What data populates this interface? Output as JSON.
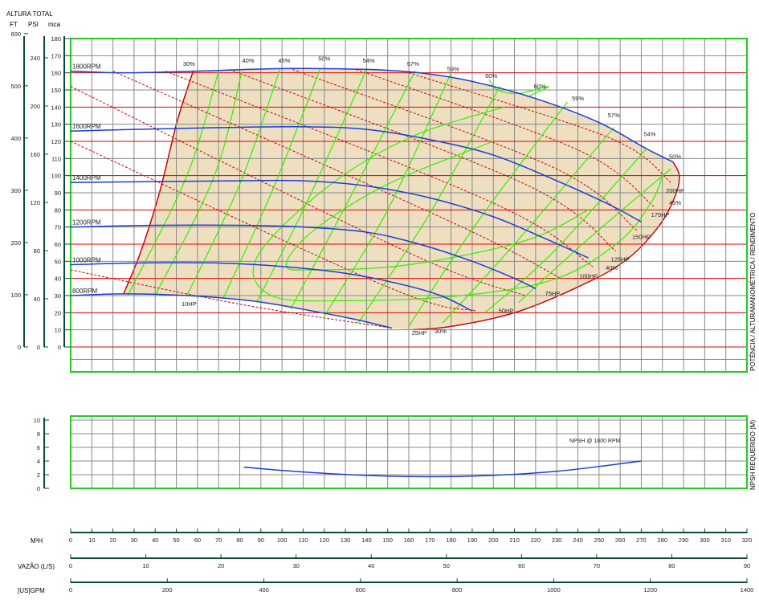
{
  "axis_titles": {
    "altura_total": "ALTURA TOTAL",
    "ft": "FT",
    "psi": "PSI",
    "mca": "mca",
    "right_main": "POTÊNCIA / ALTURAMANOMÉTRICA / RENDIMENTO",
    "right_npsh": "NPSH REQUERIDO (M)",
    "m3h": "M³H",
    "vazao": "VAZÃO (L/S)",
    "gpm": "[US]GPM"
  },
  "colors": {
    "grid_major_h": "#e00000",
    "grid_frame": "#22cc22",
    "grid_minor": "#888888",
    "rpm_curve": "#1a3fd6",
    "eff_line": "#33ee00",
    "hp_line": "#cc0000",
    "region_fill": "#eedfc0",
    "axis": "#0a4a3a"
  },
  "chart_data": [
    {
      "type": "line",
      "title": "",
      "xlabel": "M³H",
      "ylabel": "ALTURA TOTAL",
      "xlim": [
        0,
        320
      ],
      "ylim": [
        0,
        180
      ],
      "grid": true,
      "y_ticks_mca": [
        0,
        10,
        20,
        30,
        40,
        50,
        60,
        70,
        80,
        90,
        100,
        110,
        120,
        130,
        140,
        150,
        160,
        170,
        180
      ],
      "y_ticks_psi": [
        "0",
        "40",
        "80",
        "120",
        "160",
        "200",
        "240"
      ],
      "y_ticks_ft": [
        "0",
        "100",
        "200",
        "300",
        "400",
        "500",
        "600"
      ],
      "rpm_series": [
        {
          "name": "1800RPM",
          "points": [
            [
              0,
              161
            ],
            [
              25,
              160
            ],
            [
              60,
              161
            ],
            [
              100,
              162.5
            ],
            [
              140,
              162
            ],
            [
              165,
              160
            ],
            [
              190,
              155
            ],
            [
              220,
              145
            ],
            [
              250,
              131
            ],
            [
              272,
              116
            ],
            [
              285,
              108
            ]
          ]
        },
        {
          "name": "1600RPM",
          "points": [
            [
              0,
              126
            ],
            [
              30,
              127
            ],
            [
              70,
              128
            ],
            [
              110,
              128.5
            ],
            [
              140,
              127
            ],
            [
              170,
              121
            ],
            [
              200,
              112
            ],
            [
              230,
              97
            ],
            [
              255,
              83
            ],
            [
              270,
              73
            ]
          ]
        },
        {
          "name": "1400RPM",
          "points": [
            [
              0,
              96
            ],
            [
              40,
              96.5
            ],
            [
              80,
              97
            ],
            [
              110,
              97
            ],
            [
              140,
              94
            ],
            [
              170,
              87
            ],
            [
              200,
              76
            ],
            [
              225,
              63
            ],
            [
              245,
              52
            ]
          ]
        },
        {
          "name": "1200RPM",
          "points": [
            [
              0,
              70
            ],
            [
              40,
              71
            ],
            [
              80,
              71
            ],
            [
              110,
              70
            ],
            [
              140,
              67
            ],
            [
              165,
              60
            ],
            [
              190,
              50
            ],
            [
              210,
              40
            ],
            [
              220,
              34
            ]
          ]
        },
        {
          "name": "1000RPM",
          "points": [
            [
              0,
              48
            ],
            [
              30,
              49
            ],
            [
              70,
              49
            ],
            [
              100,
              47
            ],
            [
              130,
              43
            ],
            [
              155,
              37
            ],
            [
              175,
              30
            ],
            [
              190,
              21
            ]
          ]
        },
        {
          "name": "800RPM",
          "points": [
            [
              0,
              30
            ],
            [
              25,
              31
            ],
            [
              55,
              30
            ],
            [
              85,
              27
            ],
            [
              110,
              22
            ],
            [
              135,
              16
            ],
            [
              152,
              11
            ]
          ]
        }
      ],
      "efficiency_labels": [
        {
          "label": "30%",
          "x": 56,
          "y": 164
        },
        {
          "label": "40%",
          "x": 84,
          "y": 166
        },
        {
          "label": "45%",
          "x": 101,
          "y": 166
        },
        {
          "label": "50%",
          "x": 120,
          "y": 167
        },
        {
          "label": "54%",
          "x": 141,
          "y": 166
        },
        {
          "label": "57%",
          "x": 162,
          "y": 164
        },
        {
          "label": "59%",
          "x": 181,
          "y": 161
        },
        {
          "label": "60%",
          "x": 199,
          "y": 157
        },
        {
          "label": "60%",
          "x": 222,
          "y": 151
        },
        {
          "label": "59%",
          "x": 240,
          "y": 144
        },
        {
          "label": "57%",
          "x": 257,
          "y": 134
        },
        {
          "label": "54%",
          "x": 274,
          "y": 123
        },
        {
          "label": "50%",
          "x": 286,
          "y": 110
        },
        {
          "label": "45%",
          "x": 286,
          "y": 83
        },
        {
          "label": "40%",
          "x": 256,
          "y": 45
        },
        {
          "label": "30%",
          "x": 175,
          "y": 8
        }
      ],
      "hp_labels": [
        {
          "label": "10HP",
          "x": 56,
          "y": 24
        },
        {
          "label": "25HP",
          "x": 165,
          "y": 7
        },
        {
          "label": "50HP",
          "x": 206,
          "y": 20
        },
        {
          "label": "75HP",
          "x": 228,
          "y": 30
        },
        {
          "label": "100HP",
          "x": 245,
          "y": 40
        },
        {
          "label": "125HP",
          "x": 260,
          "y": 50
        },
        {
          "label": "150HP",
          "x": 270,
          "y": 63
        },
        {
          "label": "175HP",
          "x": 279,
          "y": 76
        },
        {
          "label": "200HP",
          "x": 286,
          "y": 90
        }
      ]
    },
    {
      "type": "line",
      "title": "",
      "xlabel": "M³H",
      "ylabel": "NPSH REQUERIDO (M)",
      "xlim": [
        0,
        320
      ],
      "ylim": [
        0,
        10
      ],
      "y_ticks": [
        0,
        2,
        4,
        6,
        8,
        10
      ],
      "series": [
        {
          "name": "NPSH @ 1800 RPM",
          "points": [
            [
              82,
              3.1
            ],
            [
              110,
              2.4
            ],
            [
              140,
              1.9
            ],
            [
              170,
              1.7
            ],
            [
              200,
              1.9
            ],
            [
              230,
              2.5
            ],
            [
              255,
              3.4
            ],
            [
              270,
              4.0
            ]
          ]
        }
      ]
    }
  ],
  "x_axes": {
    "m3h_ticks": [
      "0",
      "10",
      "20",
      "30",
      "40",
      "50",
      "60",
      "70",
      "80",
      "90",
      "100",
      "110",
      "120",
      "130",
      "140",
      "150",
      "160",
      "170",
      "180",
      "190",
      "200",
      "210",
      "220",
      "230",
      "240",
      "250",
      "260",
      "270",
      "280",
      "290",
      "300",
      "310",
      "320"
    ],
    "ls_ticks": [
      "0",
      "10",
      "20",
      "30",
      "40",
      "50",
      "60",
      "70",
      "80",
      "90"
    ],
    "gpm_ticks": [
      "0",
      "200",
      "400",
      "600",
      "800",
      "1000",
      "1200",
      "1400"
    ]
  }
}
